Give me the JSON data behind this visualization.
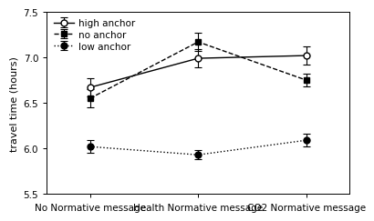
{
  "x_labels": [
    "No Normative message",
    "Health Normative message",
    "CO2 Normative message"
  ],
  "x_positions": [
    0,
    1,
    2
  ],
  "series": {
    "high_anchor": {
      "label": "high anchor",
      "linestyle": "-",
      "marker": "o",
      "markerfacecolor": "white",
      "markeredgecolor": "black",
      "color": "black",
      "markersize": 5,
      "linewidth": 1.0,
      "values": [
        6.67,
        6.99,
        7.02
      ],
      "errors": [
        0.1,
        0.1,
        0.1
      ]
    },
    "no_anchor": {
      "label": "no anchor",
      "linestyle": "--",
      "marker": "s",
      "markerfacecolor": "black",
      "markeredgecolor": "black",
      "color": "black",
      "markersize": 5,
      "linewidth": 1.0,
      "values": [
        6.55,
        7.17,
        6.75
      ],
      "errors": [
        0.1,
        0.1,
        0.07
      ]
    },
    "low_anchor": {
      "label": "low anchor",
      "linestyle": ":",
      "marker": "o",
      "markerfacecolor": "black",
      "markeredgecolor": "black",
      "color": "black",
      "markersize": 5,
      "linewidth": 1.0,
      "values": [
        6.02,
        5.93,
        6.09
      ],
      "errors": [
        0.07,
        0.05,
        0.07
      ]
    }
  },
  "ylabel": "travel time (hours)",
  "ylim": [
    5.5,
    7.5
  ],
  "yticks": [
    5.5,
    6.0,
    6.5,
    7.0,
    7.5
  ],
  "background_color": "#ffffff",
  "legend_loc": "upper left",
  "capsize": 3,
  "tick_fontsize": 7.5,
  "ylabel_fontsize": 8,
  "legend_fontsize": 7.5
}
